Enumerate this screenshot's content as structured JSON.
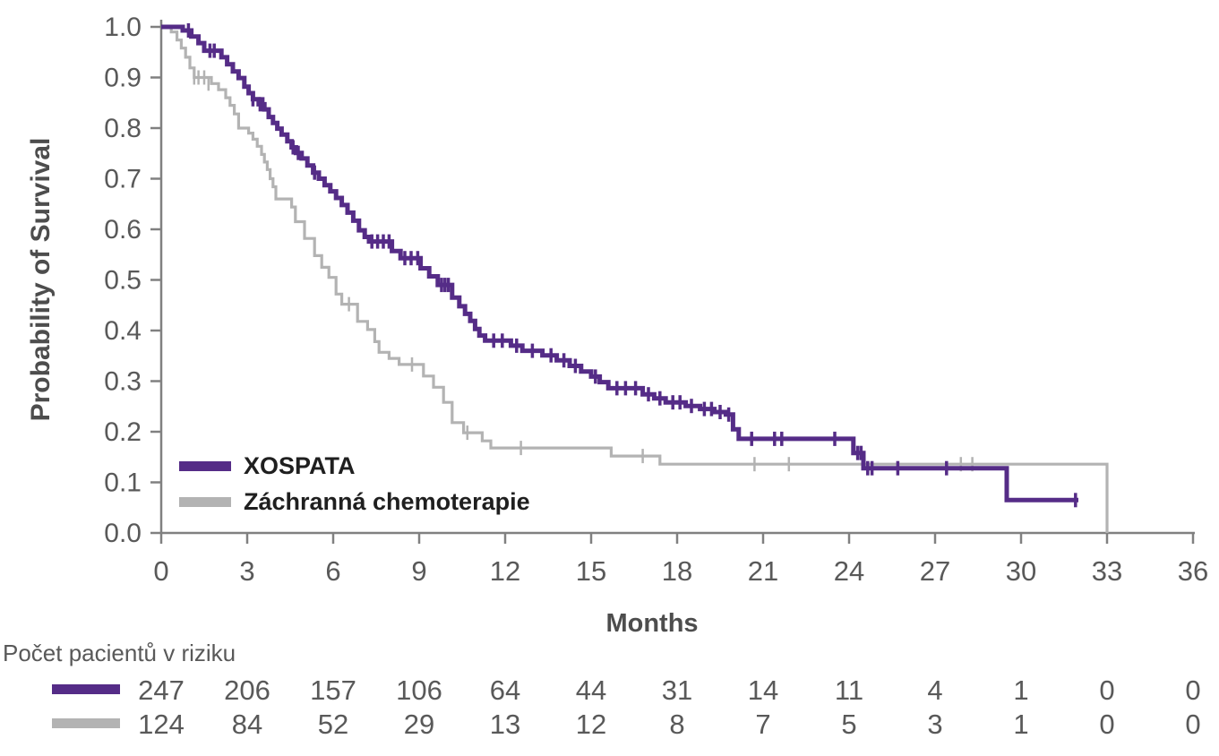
{
  "colors": {
    "xospata_purple": "#552C87",
    "chemo_gray": "#B3B3B3",
    "axis_line": "#808080",
    "tick_text": "#595959",
    "axis_title_text": "#4D4D4D",
    "legend_text": "#1F1F1F"
  },
  "chart_data": {
    "type": "line",
    "subtype": "kaplan-meier-step",
    "title": "",
    "xlabel": "Months",
    "ylabel": "Probability of Survival",
    "xlim": [
      0,
      36
    ],
    "ylim": [
      0.0,
      1.0
    ],
    "xticks": [
      0,
      3,
      6,
      9,
      12,
      15,
      18,
      21,
      24,
      27,
      30,
      33,
      36
    ],
    "yticks": [
      0.0,
      0.1,
      0.2,
      0.3,
      0.4,
      0.5,
      0.6,
      0.7,
      0.8,
      0.9,
      1.0
    ],
    "grid": false,
    "legend_position": "inside-lower-left",
    "series": [
      {
        "name": "XOSPATA",
        "color": "#552C87",
        "line_width": 5,
        "end_t": 32.0,
        "points": [
          [
            0.75,
            0.993
          ],
          [
            1.05,
            0.981
          ],
          [
            1.3,
            0.968
          ],
          [
            1.5,
            0.953
          ],
          [
            2.1,
            0.94
          ],
          [
            2.3,
            0.926
          ],
          [
            2.5,
            0.912
          ],
          [
            2.7,
            0.899
          ],
          [
            2.9,
            0.882
          ],
          [
            3.05,
            0.869
          ],
          [
            3.2,
            0.857
          ],
          [
            3.4,
            0.847
          ],
          [
            3.6,
            0.837
          ],
          [
            3.75,
            0.822
          ],
          [
            3.9,
            0.81
          ],
          [
            4.05,
            0.799
          ],
          [
            4.2,
            0.787
          ],
          [
            4.4,
            0.774
          ],
          [
            4.55,
            0.762
          ],
          [
            4.7,
            0.751
          ],
          [
            4.9,
            0.74
          ],
          [
            5.1,
            0.726
          ],
          [
            5.3,
            0.712
          ],
          [
            5.5,
            0.7
          ],
          [
            5.7,
            0.687
          ],
          [
            5.9,
            0.675
          ],
          [
            6.1,
            0.662
          ],
          [
            6.3,
            0.648
          ],
          [
            6.5,
            0.633
          ],
          [
            6.7,
            0.617
          ],
          [
            6.9,
            0.598
          ],
          [
            7.1,
            0.585
          ],
          [
            7.25,
            0.576
          ],
          [
            8.05,
            0.557
          ],
          [
            8.35,
            0.543
          ],
          [
            9.05,
            0.523
          ],
          [
            9.35,
            0.507
          ],
          [
            9.65,
            0.49
          ],
          [
            10.15,
            0.465
          ],
          [
            10.4,
            0.448
          ],
          [
            10.6,
            0.433
          ],
          [
            10.78,
            0.419
          ],
          [
            10.95,
            0.403
          ],
          [
            11.1,
            0.39
          ],
          [
            11.3,
            0.38
          ],
          [
            12.2,
            0.37
          ],
          [
            12.6,
            0.36
          ],
          [
            13.3,
            0.351
          ],
          [
            13.8,
            0.341
          ],
          [
            14.25,
            0.33
          ],
          [
            14.65,
            0.319
          ],
          [
            15.0,
            0.309
          ],
          [
            15.3,
            0.298
          ],
          [
            15.6,
            0.286
          ],
          [
            16.8,
            0.274
          ],
          [
            17.2,
            0.266
          ],
          [
            17.6,
            0.258
          ],
          [
            18.3,
            0.251
          ],
          [
            18.8,
            0.245
          ],
          [
            19.3,
            0.239
          ],
          [
            19.7,
            0.234
          ],
          [
            19.95,
            0.205
          ],
          [
            20.15,
            0.186
          ],
          [
            24.15,
            0.158
          ],
          [
            24.5,
            0.128
          ],
          [
            29.5,
            0.065
          ]
        ],
        "censors": [
          [
            0.95,
            0.993
          ],
          [
            1.7,
            0.953
          ],
          [
            1.85,
            0.953
          ],
          [
            3.2,
            0.857
          ],
          [
            3.45,
            0.847
          ],
          [
            3.55,
            0.847
          ],
          [
            4.6,
            0.762
          ],
          [
            4.78,
            0.751
          ],
          [
            5.35,
            0.712
          ],
          [
            7.35,
            0.576
          ],
          [
            7.55,
            0.576
          ],
          [
            7.75,
            0.576
          ],
          [
            7.95,
            0.576
          ],
          [
            8.5,
            0.543
          ],
          [
            8.72,
            0.543
          ],
          [
            8.95,
            0.543
          ],
          [
            9.78,
            0.49
          ],
          [
            9.9,
            0.49
          ],
          [
            10.02,
            0.49
          ],
          [
            11.6,
            0.38
          ],
          [
            11.9,
            0.38
          ],
          [
            12.4,
            0.37
          ],
          [
            12.95,
            0.36
          ],
          [
            13.6,
            0.351
          ],
          [
            14.05,
            0.341
          ],
          [
            14.45,
            0.33
          ],
          [
            15.15,
            0.309
          ],
          [
            15.9,
            0.286
          ],
          [
            16.2,
            0.286
          ],
          [
            16.55,
            0.286
          ],
          [
            17.0,
            0.274
          ],
          [
            17.4,
            0.266
          ],
          [
            17.85,
            0.258
          ],
          [
            18.1,
            0.258
          ],
          [
            18.5,
            0.251
          ],
          [
            18.95,
            0.245
          ],
          [
            19.2,
            0.245
          ],
          [
            19.5,
            0.239
          ],
          [
            19.8,
            0.234
          ],
          [
            20.6,
            0.186
          ],
          [
            21.4,
            0.186
          ],
          [
            21.65,
            0.186
          ],
          [
            23.5,
            0.186
          ],
          [
            24.3,
            0.158
          ],
          [
            24.42,
            0.158
          ],
          [
            24.65,
            0.128
          ],
          [
            24.8,
            0.128
          ],
          [
            25.7,
            0.128
          ],
          [
            27.4,
            0.128
          ],
          [
            31.9,
            0.065
          ]
        ]
      },
      {
        "name": "Záchranná chemoterapie",
        "color": "#B3B3B3",
        "line_width": 3.2,
        "end_t": 33.0,
        "points": [
          [
            0.35,
            0.99
          ],
          [
            0.55,
            0.974
          ],
          [
            0.7,
            0.958
          ],
          [
            0.85,
            0.94
          ],
          [
            1.0,
            0.919
          ],
          [
            1.15,
            0.9
          ],
          [
            1.75,
            0.888
          ],
          [
            2.0,
            0.876
          ],
          [
            2.25,
            0.86
          ],
          [
            2.4,
            0.845
          ],
          [
            2.55,
            0.828
          ],
          [
            2.7,
            0.8
          ],
          [
            3.05,
            0.79
          ],
          [
            3.2,
            0.778
          ],
          [
            3.35,
            0.764
          ],
          [
            3.5,
            0.748
          ],
          [
            3.6,
            0.733
          ],
          [
            3.7,
            0.718
          ],
          [
            3.8,
            0.7
          ],
          [
            3.9,
            0.684
          ],
          [
            4.0,
            0.66
          ],
          [
            4.55,
            0.644
          ],
          [
            4.68,
            0.615
          ],
          [
            5.0,
            0.582
          ],
          [
            5.35,
            0.548
          ],
          [
            5.6,
            0.525
          ],
          [
            5.85,
            0.505
          ],
          [
            6.1,
            0.472
          ],
          [
            6.3,
            0.452
          ],
          [
            6.85,
            0.418
          ],
          [
            7.2,
            0.402
          ],
          [
            7.45,
            0.378
          ],
          [
            7.6,
            0.357
          ],
          [
            7.95,
            0.345
          ],
          [
            8.3,
            0.333
          ],
          [
            9.15,
            0.31
          ],
          [
            9.5,
            0.288
          ],
          [
            9.85,
            0.258
          ],
          [
            10.15,
            0.218
          ],
          [
            10.55,
            0.198
          ],
          [
            11.2,
            0.182
          ],
          [
            11.5,
            0.168
          ],
          [
            15.7,
            0.152
          ],
          [
            17.4,
            0.136
          ],
          [
            33.0,
            0.0
          ]
        ],
        "censors": [
          [
            1.15,
            0.9
          ],
          [
            1.3,
            0.9
          ],
          [
            1.5,
            0.9
          ],
          [
            1.65,
            0.888
          ],
          [
            6.55,
            0.452
          ],
          [
            8.75,
            0.333
          ],
          [
            10.68,
            0.198
          ],
          [
            12.55,
            0.168
          ],
          [
            16.8,
            0.152
          ],
          [
            20.7,
            0.136
          ],
          [
            21.9,
            0.136
          ],
          [
            27.9,
            0.136
          ],
          [
            28.3,
            0.136
          ]
        ]
      }
    ]
  },
  "risk_table": {
    "title": "Počet pacientů v riziku",
    "times": [
      0,
      3,
      6,
      9,
      12,
      15,
      18,
      21,
      24,
      27,
      30,
      33,
      36
    ],
    "rows": [
      {
        "series": "XOSPATA",
        "color": "#552C87",
        "counts": [
          247,
          206,
          157,
          106,
          64,
          44,
          31,
          14,
          11,
          4,
          1,
          0,
          0
        ]
      },
      {
        "series": "Záchranná chemoterapie",
        "color": "#B3B3B3",
        "counts": [
          124,
          84,
          52,
          29,
          13,
          12,
          8,
          7,
          5,
          3,
          1,
          0,
          0
        ]
      }
    ]
  }
}
